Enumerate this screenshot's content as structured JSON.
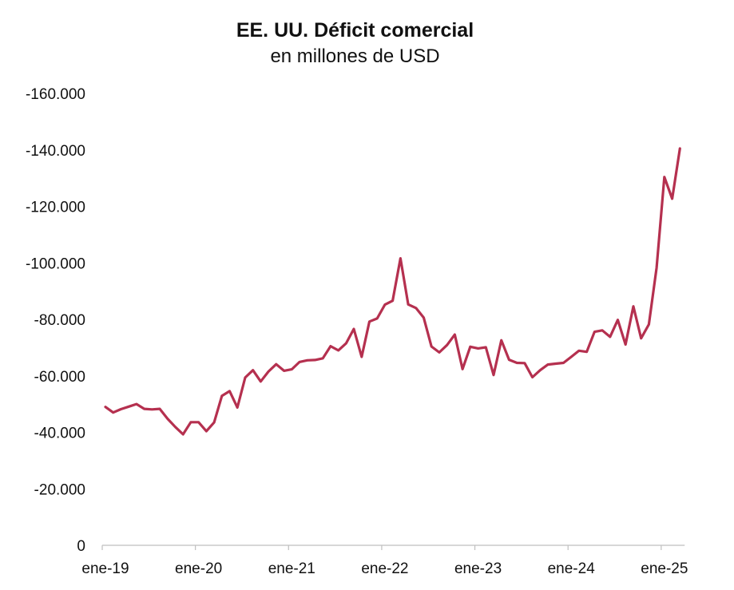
{
  "chart_data": {
    "type": "line",
    "title": "EE. UU. Déficit comercial",
    "subtitle": "en millones de USD",
    "xlabel": "",
    "ylabel": "",
    "grid": false,
    "legend": "none",
    "color": "#b5304f",
    "ylim": [
      0,
      -160000
    ],
    "y_ticks": [
      0,
      -20000,
      -40000,
      -60000,
      -80000,
      -100000,
      -120000,
      -140000,
      -160000
    ],
    "y_tick_labels": [
      "0",
      "-20.000",
      "-40.000",
      "-60.000",
      "-80.000",
      "-100.000",
      "-120.000",
      "-140.000",
      "-160.000"
    ],
    "x_ticks": [
      0,
      12,
      24,
      36,
      48,
      60,
      72
    ],
    "x_tick_labels": [
      "ene-19",
      "ene-20",
      "ene-21",
      "ene-22",
      "ene-23",
      "ene-24",
      "ene-25"
    ],
    "series": [
      {
        "name": "Déficit comercial",
        "x_start_label": "ene-19",
        "values": [
          -49000,
          -47000,
          -48200,
          -49100,
          -50000,
          -48300,
          -48100,
          -48300,
          -44800,
          -41900,
          -39300,
          -43600,
          -43600,
          -40400,
          -43500,
          -52900,
          -54600,
          -48800,
          -59400,
          -62000,
          -58000,
          -61500,
          -64100,
          -61800,
          -62300,
          -64900,
          -65500,
          -65600,
          -66200,
          -70500,
          -69000,
          -71500,
          -76600,
          -66700,
          -79200,
          -80300,
          -85200,
          -86600,
          -101600,
          -85300,
          -84000,
          -80600,
          -70400,
          -68300,
          -70900,
          -74600,
          -62400,
          -70300,
          -69700,
          -70100,
          -60300,
          -72600,
          -65700,
          -64600,
          -64500,
          -59500,
          -62000,
          -64000,
          -64300,
          -64600,
          -66700,
          -68900,
          -68500,
          -75600,
          -76100,
          -73800,
          -79800,
          -71100,
          -84600,
          -73300,
          -78200,
          -98300,
          -130400,
          -122700,
          -140500
        ]
      }
    ]
  }
}
